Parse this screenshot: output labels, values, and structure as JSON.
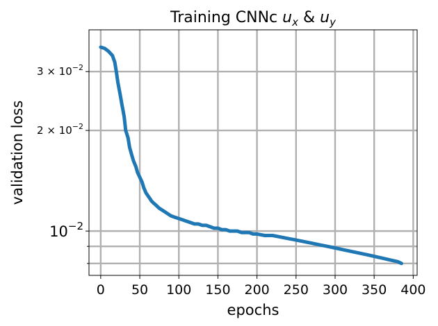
{
  "chart_data": {
    "type": "line",
    "title_main": "Training CNNc ",
    "title_math_1": "u",
    "title_sub_1": "x",
    "title_amp": " & ",
    "title_math_2": "u",
    "title_sub_2": "y",
    "xlabel": "epochs",
    "ylabel": "validation loss",
    "xlim": [
      -15,
      405
    ],
    "ylim": [
      0.00737,
      0.04
    ],
    "yscale": "log",
    "grid": true,
    "line_color": "#1f77b4",
    "x_ticks": [
      0,
      50,
      100,
      150,
      200,
      250,
      300,
      350,
      400
    ],
    "x_tick_labels": [
      "0",
      "50",
      "100",
      "150",
      "200",
      "250",
      "300",
      "350",
      "400"
    ],
    "y_major_ticks": [
      {
        "value": 0.03,
        "base": "3 × 10",
        "exp": "−2"
      },
      {
        "value": 0.02,
        "base": "2 × 10",
        "exp": "−2"
      },
      {
        "value": 0.01,
        "base": "10",
        "exp": "−2"
      }
    ],
    "y_minor_ticks": [
      0.009,
      0.008
    ],
    "series": [
      {
        "x": [
          0,
          5,
          10,
          15,
          18,
          20,
          22,
          25,
          27,
          30,
          32,
          35,
          37,
          40,
          42,
          45,
          47,
          50,
          53,
          55,
          58,
          60,
          63,
          65,
          68,
          70,
          75,
          80,
          85,
          90,
          95,
          100,
          105,
          110,
          115,
          120,
          125,
          130,
          135,
          140,
          145,
          150,
          155,
          160,
          165,
          170,
          175,
          180,
          185,
          190,
          195,
          200,
          210,
          220,
          230,
          240,
          250,
          260,
          270,
          280,
          290,
          300,
          310,
          320,
          330,
          340,
          350,
          360,
          370,
          380,
          385
        ],
        "y": [
          0.0355,
          0.0352,
          0.0345,
          0.0335,
          0.032,
          0.03,
          0.0278,
          0.0255,
          0.024,
          0.022,
          0.02,
          0.019,
          0.0178,
          0.0168,
          0.0162,
          0.0156,
          0.015,
          0.0145,
          0.014,
          0.0135,
          0.013,
          0.0128,
          0.0125,
          0.0123,
          0.0121,
          0.012,
          0.0117,
          0.0115,
          0.0113,
          0.0111,
          0.011,
          0.0109,
          0.0108,
          0.0107,
          0.0106,
          0.0105,
          0.0105,
          0.0104,
          0.0104,
          0.0103,
          0.0102,
          0.0102,
          0.0101,
          0.0101,
          0.01,
          0.01,
          0.01,
          0.0099,
          0.0099,
          0.0099,
          0.0098,
          0.0098,
          0.0097,
          0.0097,
          0.0096,
          0.0095,
          0.0094,
          0.0093,
          0.0092,
          0.0091,
          0.009,
          0.0089,
          0.0088,
          0.0087,
          0.0086,
          0.0085,
          0.0084,
          0.0083,
          0.0082,
          0.0081,
          0.008
        ]
      }
    ]
  }
}
